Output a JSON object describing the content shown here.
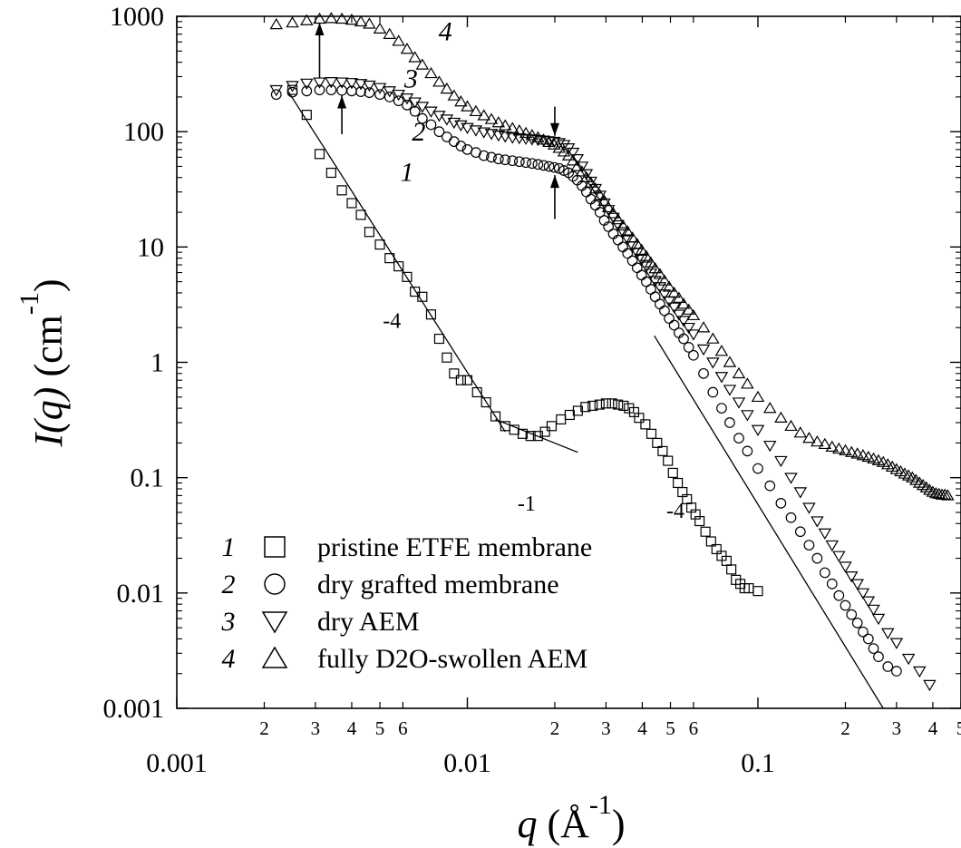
{
  "chart_data": {
    "type": "scatter",
    "x_scale": "log",
    "y_scale": "log",
    "xlim": [
      0.001,
      0.5
    ],
    "ylim": [
      0.001,
      1000
    ],
    "x_major_ticks": [
      {
        "value": 0.001,
        "label": "0.001"
      },
      {
        "value": 0.01,
        "label": "0.01"
      },
      {
        "value": 0.1,
        "label": "0.1"
      }
    ],
    "x_minor_ticks": [
      {
        "value": 0.002,
        "label": "2"
      },
      {
        "value": 0.003,
        "label": "3"
      },
      {
        "value": 0.004,
        "label": "4"
      },
      {
        "value": 0.005,
        "label": "5"
      },
      {
        "value": 0.006,
        "label": "6"
      },
      {
        "value": 0.02,
        "label": "2"
      },
      {
        "value": 0.03,
        "label": "3"
      },
      {
        "value": 0.04,
        "label": "4"
      },
      {
        "value": 0.05,
        "label": "5"
      },
      {
        "value": 0.06,
        "label": "6"
      },
      {
        "value": 0.2,
        "label": "2"
      },
      {
        "value": 0.3,
        "label": "3"
      },
      {
        "value": 0.4,
        "label": "4"
      },
      {
        "value": 0.5,
        "label": "5"
      }
    ],
    "y_major_ticks": [
      {
        "value": 0.001,
        "label": "0.001"
      },
      {
        "value": 0.01,
        "label": "0.01"
      },
      {
        "value": 0.1,
        "label": "0.1"
      },
      {
        "value": 1,
        "label": "1"
      },
      {
        "value": 10,
        "label": "10"
      },
      {
        "value": 100,
        "label": "100"
      },
      {
        "value": 1000,
        "label": "1000"
      }
    ],
    "xlabel": {
      "var": "q",
      "unit": "(Å",
      "exp": "-1",
      "close": ")"
    },
    "ylabel": {
      "var": "I(q)",
      "unit": "(cm",
      "exp": "-1",
      "close": ")"
    },
    "legend_placement": "bottom-left",
    "legend": [
      {
        "num": "1",
        "marker": "square",
        "text": "pristine ETFE membrane"
      },
      {
        "num": "2",
        "marker": "circle",
        "text": "dry grafted membrane"
      },
      {
        "num": "3",
        "marker": "triangle-down",
        "text": "dry AEM"
      },
      {
        "num": "4",
        "marker": "triangle-up",
        "text": "fully D2O-swollen AEM"
      }
    ],
    "series": [
      {
        "name": "1",
        "marker": "square",
        "q": [
          0.0025,
          0.0028,
          0.0031,
          0.0034,
          0.0037,
          0.004,
          0.0043,
          0.0046,
          0.005,
          0.0054,
          0.0058,
          0.0062,
          0.0066,
          0.007,
          0.0075,
          0.008,
          0.0085,
          0.009,
          0.0095,
          0.01,
          0.0108,
          0.0116,
          0.0125,
          0.0135,
          0.0145,
          0.0155,
          0.0165,
          0.0175,
          0.0185,
          0.0195,
          0.021,
          0.0225,
          0.024,
          0.0255,
          0.027,
          0.0285,
          0.03,
          0.0315,
          0.033,
          0.0345,
          0.036,
          0.0375,
          0.039,
          0.041,
          0.043,
          0.045,
          0.047,
          0.049,
          0.051,
          0.053,
          0.055,
          0.057,
          0.059,
          0.061,
          0.063,
          0.066,
          0.069,
          0.072,
          0.075,
          0.078,
          0.081,
          0.084,
          0.087,
          0.09,
          0.093,
          0.1
        ],
        "I": [
          230,
          140,
          64,
          44,
          31,
          24,
          19,
          13.5,
          10.5,
          8,
          6.8,
          5.5,
          4.1,
          3.7,
          2.6,
          1.6,
          1.1,
          0.8,
          0.7,
          0.7,
          0.55,
          0.45,
          0.34,
          0.28,
          0.26,
          0.24,
          0.23,
          0.23,
          0.25,
          0.28,
          0.32,
          0.35,
          0.38,
          0.41,
          0.42,
          0.43,
          0.44,
          0.44,
          0.43,
          0.42,
          0.4,
          0.37,
          0.33,
          0.29,
          0.24,
          0.2,
          0.17,
          0.14,
          0.11,
          0.09,
          0.075,
          0.065,
          0.055,
          0.048,
          0.042,
          0.034,
          0.028,
          0.024,
          0.021,
          0.019,
          0.016,
          0.013,
          0.012,
          0.011,
          0.011,
          0.0104
        ]
      },
      {
        "name": "2",
        "marker": "circle",
        "q": [
          0.0022,
          0.0025,
          0.0028,
          0.0031,
          0.0034,
          0.0037,
          0.004,
          0.0043,
          0.0046,
          0.005,
          0.0054,
          0.0058,
          0.0062,
          0.0066,
          0.007,
          0.0075,
          0.008,
          0.0085,
          0.009,
          0.0095,
          0.01,
          0.0107,
          0.0114,
          0.0121,
          0.0128,
          0.0135,
          0.0143,
          0.0151,
          0.0159,
          0.0167,
          0.0175,
          0.0183,
          0.0191,
          0.0199,
          0.0207,
          0.0215,
          0.0223,
          0.0231,
          0.0239,
          0.0248,
          0.0257,
          0.0266,
          0.0276,
          0.0286,
          0.0296,
          0.0306,
          0.0318,
          0.033,
          0.0343,
          0.0356,
          0.037,
          0.0384,
          0.0398,
          0.0413,
          0.0428,
          0.0443,
          0.046,
          0.0477,
          0.0495,
          0.0515,
          0.0535,
          0.0555,
          0.0578,
          0.06,
          0.065,
          0.07,
          0.075,
          0.08,
          0.086,
          0.092,
          0.1,
          0.11,
          0.12,
          0.13,
          0.14,
          0.15,
          0.16,
          0.17,
          0.18,
          0.19,
          0.2,
          0.21,
          0.22,
          0.23,
          0.24,
          0.25,
          0.26,
          0.28,
          0.3
        ],
        "I": [
          210,
          220,
          225,
          230,
          230,
          228,
          225,
          222,
          218,
          210,
          200,
          185,
          170,
          150,
          130,
          115,
          100,
          90,
          82,
          75,
          70,
          66,
          62,
          60,
          58,
          57,
          56,
          55,
          54,
          53,
          52,
          51,
          50,
          49,
          48,
          46,
          44,
          41,
          38,
          34,
          30,
          26,
          23,
          20,
          17,
          15,
          13,
          11.5,
          10,
          8.8,
          7.6,
          6.6,
          5.7,
          5,
          4.3,
          3.7,
          3.2,
          2.8,
          2.4,
          2.1,
          1.8,
          1.6,
          1.35,
          1.15,
          0.8,
          0.55,
          0.4,
          0.3,
          0.22,
          0.17,
          0.12,
          0.085,
          0.06,
          0.045,
          0.034,
          0.026,
          0.02,
          0.015,
          0.012,
          0.0095,
          0.0078,
          0.0065,
          0.0055,
          0.0046,
          0.004,
          0.0033,
          0.0028,
          0.0023,
          0.0021
        ]
      },
      {
        "name": "3",
        "marker": "triangle-down",
        "q": [
          0.0022,
          0.0025,
          0.0028,
          0.0031,
          0.0034,
          0.0037,
          0.004,
          0.0043,
          0.0046,
          0.005,
          0.0054,
          0.0058,
          0.0062,
          0.0066,
          0.007,
          0.0075,
          0.008,
          0.0085,
          0.009,
          0.0095,
          0.01,
          0.0107,
          0.0114,
          0.0121,
          0.0128,
          0.0135,
          0.0143,
          0.0151,
          0.0159,
          0.0167,
          0.0175,
          0.0183,
          0.0191,
          0.0199,
          0.0207,
          0.0215,
          0.0223,
          0.0231,
          0.0239,
          0.0248,
          0.0257,
          0.0266,
          0.0276,
          0.0286,
          0.0296,
          0.0306,
          0.0318,
          0.033,
          0.0343,
          0.0356,
          0.037,
          0.0384,
          0.0398,
          0.0413,
          0.0428,
          0.0443,
          0.046,
          0.0477,
          0.0495,
          0.0515,
          0.0535,
          0.0555,
          0.0578,
          0.06,
          0.065,
          0.07,
          0.075,
          0.08,
          0.086,
          0.092,
          0.1,
          0.11,
          0.12,
          0.13,
          0.14,
          0.15,
          0.16,
          0.17,
          0.18,
          0.19,
          0.2,
          0.21,
          0.22,
          0.23,
          0.24,
          0.25,
          0.26,
          0.28,
          0.3,
          0.33,
          0.36,
          0.39
        ],
        "I": [
          230,
          250,
          262,
          268,
          270,
          268,
          265,
          260,
          252,
          240,
          225,
          210,
          195,
          180,
          165,
          150,
          138,
          128,
          120,
          114,
          108,
          103,
          99,
          96,
          93,
          91,
          89,
          88,
          87,
          86,
          85,
          84,
          83,
          82,
          80,
          77,
          72,
          66,
          58,
          50,
          43,
          37,
          32,
          28,
          24,
          21,
          18,
          15.5,
          13.5,
          11.7,
          10.2,
          8.9,
          7.8,
          6.8,
          5.9,
          5.1,
          4.5,
          3.9,
          3.4,
          3,
          2.6,
          2.3,
          2,
          1.75,
          1.3,
          1,
          0.75,
          0.58,
          0.45,
          0.35,
          0.26,
          0.19,
          0.14,
          0.1,
          0.075,
          0.055,
          0.042,
          0.033,
          0.026,
          0.021,
          0.017,
          0.014,
          0.012,
          0.01,
          0.0085,
          0.0072,
          0.006,
          0.0045,
          0.0037,
          0.0027,
          0.0021,
          0.0016
        ]
      },
      {
        "name": "4",
        "marker": "triangle-up",
        "q": [
          0.0022,
          0.0025,
          0.0028,
          0.0031,
          0.0034,
          0.0037,
          0.004,
          0.0043,
          0.0046,
          0.005,
          0.0054,
          0.0058,
          0.0062,
          0.0066,
          0.007,
          0.0075,
          0.008,
          0.0085,
          0.009,
          0.0095,
          0.01,
          0.0107,
          0.0114,
          0.0121,
          0.0128,
          0.0135,
          0.0143,
          0.0151,
          0.0159,
          0.0167,
          0.0175,
          0.0183,
          0.0191,
          0.0199,
          0.0207,
          0.0215,
          0.0223,
          0.0231,
          0.0239,
          0.0248,
          0.0257,
          0.0266,
          0.0276,
          0.0286,
          0.0296,
          0.0306,
          0.0318,
          0.033,
          0.0343,
          0.0356,
          0.037,
          0.0384,
          0.0398,
          0.0413,
          0.0428,
          0.0443,
          0.046,
          0.0477,
          0.0495,
          0.0515,
          0.0535,
          0.0555,
          0.0578,
          0.06,
          0.065,
          0.07,
          0.075,
          0.08,
          0.086,
          0.092,
          0.1,
          0.11,
          0.12,
          0.13,
          0.14,
          0.15,
          0.16,
          0.17,
          0.18,
          0.19,
          0.2,
          0.21,
          0.22,
          0.23,
          0.24,
          0.25,
          0.26,
          0.27,
          0.28,
          0.29,
          0.3,
          0.31,
          0.32,
          0.33,
          0.34,
          0.35,
          0.36,
          0.37,
          0.38,
          0.39,
          0.4,
          0.41,
          0.42,
          0.43,
          0.44,
          0.45
        ],
        "I": [
          850,
          880,
          920,
          950,
          960,
          950,
          930,
          900,
          860,
          780,
          700,
          610,
          520,
          440,
          380,
          320,
          270,
          235,
          205,
          182,
          165,
          150,
          138,
          128,
          120,
          113,
          107,
          102,
          97,
          93,
          89,
          85,
          81,
          77,
          72,
          67,
          62,
          56,
          50,
          45,
          40,
          36,
          32,
          28,
          25,
          22,
          19.5,
          17.3,
          15.3,
          13.6,
          12,
          10.6,
          9.4,
          8.3,
          7.3,
          6.5,
          5.8,
          5.1,
          4.5,
          4,
          3.6,
          3.2,
          2.85,
          2.55,
          2,
          1.6,
          1.25,
          1,
          0.8,
          0.65,
          0.5,
          0.4,
          0.33,
          0.28,
          0.245,
          0.22,
          0.205,
          0.195,
          0.185,
          0.178,
          0.172,
          0.166,
          0.161,
          0.156,
          0.151,
          0.146,
          0.141,
          0.136,
          0.13,
          0.124,
          0.118,
          0.113,
          0.108,
          0.104,
          0.1,
          0.095,
          0.09,
          0.086,
          0.082,
          0.078,
          0.075,
          0.073,
          0.072,
          0.071,
          0.071,
          0.07
        ]
      }
    ],
    "slope_lines": [
      {
        "label": "-4",
        "q": [
          0.0024,
          0.0135
        ],
        "I": [
          230,
          0.25
        ]
      },
      {
        "label": "-1",
        "q": [
          0.0125,
          0.024
        ],
        "I": [
          0.32,
          0.166
        ]
      },
      {
        "label": "-4",
        "q": [
          0.044,
          0.27
        ],
        "I": [
          1.7,
          0.001
        ]
      }
    ],
    "curve_labels": [
      {
        "text": "1",
        "q": 0.0062,
        "I": 45
      },
      {
        "text": "2",
        "q": 0.0068,
        "I": 100
      },
      {
        "text": "3",
        "q": 0.0064,
        "I": 290
      },
      {
        "text": "4",
        "q": 0.0084,
        "I": 740
      }
    ],
    "slope_labels": [
      {
        "text": "-4",
        "q": 0.0055,
        "I": 2.3
      },
      {
        "text": "-1",
        "q": 0.016,
        "I": 0.06
      },
      {
        "text": "-4",
        "q": 0.052,
        "I": 0.052
      }
    ],
    "arrows": [
      {
        "q": 0.0031,
        "I_from": 290,
        "I_to": 880,
        "direction": "up"
      },
      {
        "q": 0.0037,
        "I_from": 95,
        "I_to": 205,
        "direction": "up"
      },
      {
        "q": 0.02,
        "I_from": 165,
        "I_to": 92,
        "direction": "down"
      },
      {
        "q": 0.02,
        "I_from": 17.5,
        "I_to": 42,
        "direction": "up"
      }
    ]
  }
}
